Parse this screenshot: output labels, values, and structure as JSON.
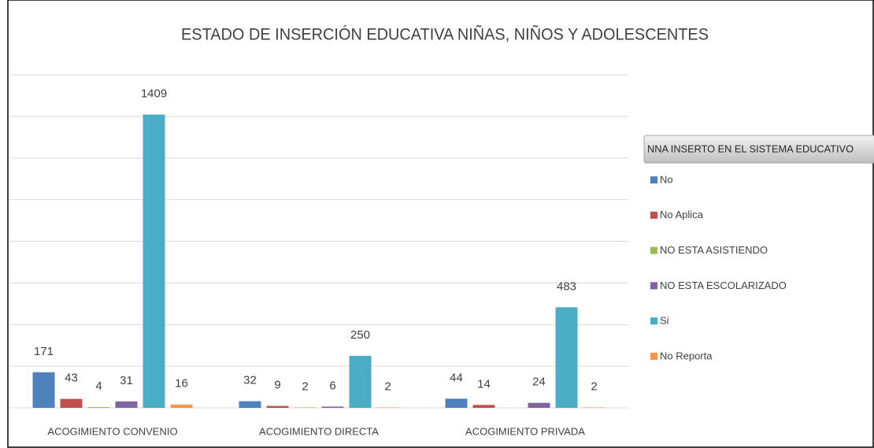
{
  "chart_data": {
    "type": "bar",
    "title": "ESTADO DE INSERCIÓN EDUCATIVA NIÑAS, NIÑOS Y ADOLESCENTES",
    "legend_title": "NNA INSERTO EN EL SISTEMA EDUCATIVO",
    "categories": [
      "ACOGIMIENTO CONVENIO",
      "ACOGIMIENTO DIRECTA",
      "ACOGIMIENTO PRIVADA"
    ],
    "series": [
      {
        "name": "No",
        "color": "#4f81bd",
        "values": [
          171,
          32,
          44
        ]
      },
      {
        "name": "No Aplica",
        "color": "#c0504d",
        "values": [
          43,
          9,
          14
        ]
      },
      {
        "name": "NO ESTA ASISTIENDO",
        "color": "#9bbb59",
        "values": [
          4,
          2,
          null
        ]
      },
      {
        "name": "NO ESTA ESCOLARIZADO",
        "color": "#8064a2",
        "values": [
          31,
          6,
          24
        ]
      },
      {
        "name": "Si",
        "color": "#4bacc6",
        "values": [
          1409,
          250,
          483
        ]
      },
      {
        "name": "No Reporta",
        "color": "#f79646",
        "values": [
          16,
          2,
          2
        ]
      }
    ],
    "ylim": [
      0,
      1600
    ],
    "yticks": [
      0,
      200,
      400,
      600,
      800,
      1000,
      1200,
      1400,
      1600
    ],
    "grid": true
  }
}
